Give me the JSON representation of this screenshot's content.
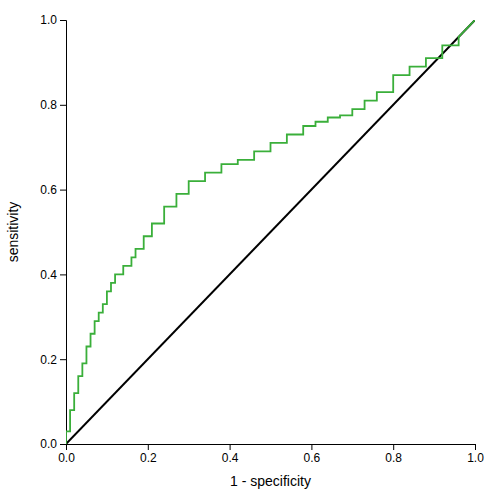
{
  "chart_data": {
    "type": "line",
    "xlabel": "1 - specificity",
    "ylabel": "sensitivity",
    "xlim": [
      0.0,
      1.0
    ],
    "ylim": [
      0.0,
      1.0
    ],
    "xticks": [
      {
        "value": 0.0,
        "label": "0.0"
      },
      0.2,
      0.4,
      0.6,
      0.8,
      {
        "value": 1.0,
        "label": "1.0"
      }
    ],
    "yticks": [
      {
        "value": 0.0,
        "label": "0.0"
      },
      0.2,
      0.4,
      0.6,
      0.8,
      {
        "value": 1.0,
        "label": "1.0"
      }
    ],
    "grid": false,
    "series": [
      {
        "color": "black",
        "x": [
          0,
          1
        ],
        "values": [
          0,
          1
        ]
      },
      {
        "color": "#3aaf3a",
        "x": [
          0.0,
          0.0,
          0.01,
          0.01,
          0.02,
          0.02,
          0.03,
          0.03,
          0.04,
          0.04,
          0.05,
          0.05,
          0.06,
          0.06,
          0.07,
          0.07,
          0.08,
          0.08,
          0.09,
          0.09,
          0.1,
          0.1,
          0.11,
          0.11,
          0.12,
          0.12,
          0.13,
          0.14,
          0.14,
          0.16,
          0.16,
          0.17,
          0.17,
          0.19,
          0.19,
          0.21,
          0.21,
          0.24,
          0.24,
          0.27,
          0.27,
          0.3,
          0.3,
          0.34,
          0.34,
          0.38,
          0.38,
          0.42,
          0.42,
          0.46,
          0.46,
          0.5,
          0.5,
          0.54,
          0.54,
          0.58,
          0.58,
          0.61,
          0.61,
          0.64,
          0.64,
          0.67,
          0.67,
          0.7,
          0.7,
          0.73,
          0.73,
          0.76,
          0.76,
          0.8,
          0.8,
          0.84,
          0.84,
          0.88,
          0.88,
          0.92,
          0.92,
          0.96,
          0.96,
          1.0
        ],
        "values": [
          0.0,
          0.03,
          0.03,
          0.08,
          0.08,
          0.12,
          0.12,
          0.16,
          0.16,
          0.19,
          0.19,
          0.23,
          0.23,
          0.26,
          0.26,
          0.29,
          0.29,
          0.31,
          0.31,
          0.33,
          0.33,
          0.36,
          0.36,
          0.38,
          0.38,
          0.4,
          0.4,
          0.4,
          0.42,
          0.42,
          0.44,
          0.44,
          0.46,
          0.46,
          0.49,
          0.49,
          0.52,
          0.52,
          0.56,
          0.56,
          0.59,
          0.59,
          0.62,
          0.62,
          0.64,
          0.64,
          0.66,
          0.66,
          0.67,
          0.67,
          0.69,
          0.69,
          0.71,
          0.71,
          0.73,
          0.73,
          0.75,
          0.75,
          0.76,
          0.76,
          0.77,
          0.77,
          0.775,
          0.775,
          0.79,
          0.79,
          0.81,
          0.81,
          0.83,
          0.83,
          0.87,
          0.87,
          0.89,
          0.89,
          0.91,
          0.91,
          0.94,
          0.94,
          0.96,
          1.0
        ]
      }
    ]
  }
}
